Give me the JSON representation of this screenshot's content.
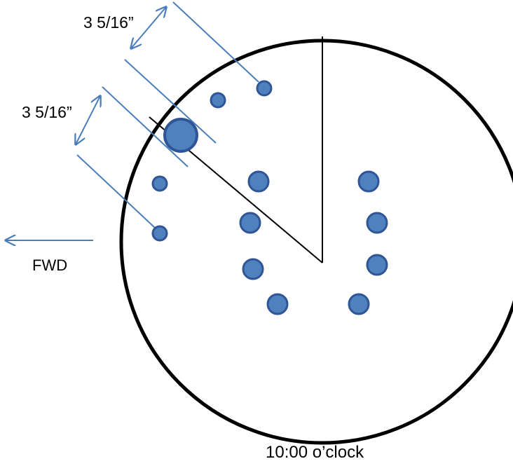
{
  "diagram": {
    "dimension_top": "3 5/16”",
    "dimension_left": "3 5/16”",
    "direction_label": "FWD",
    "caption": "10:00 o’clock",
    "colors": {
      "hole_fill": "#4f81bd",
      "hole_stroke": "#2f5597",
      "dimension_line": "#4a7ebb",
      "outline": "#000000"
    }
  }
}
